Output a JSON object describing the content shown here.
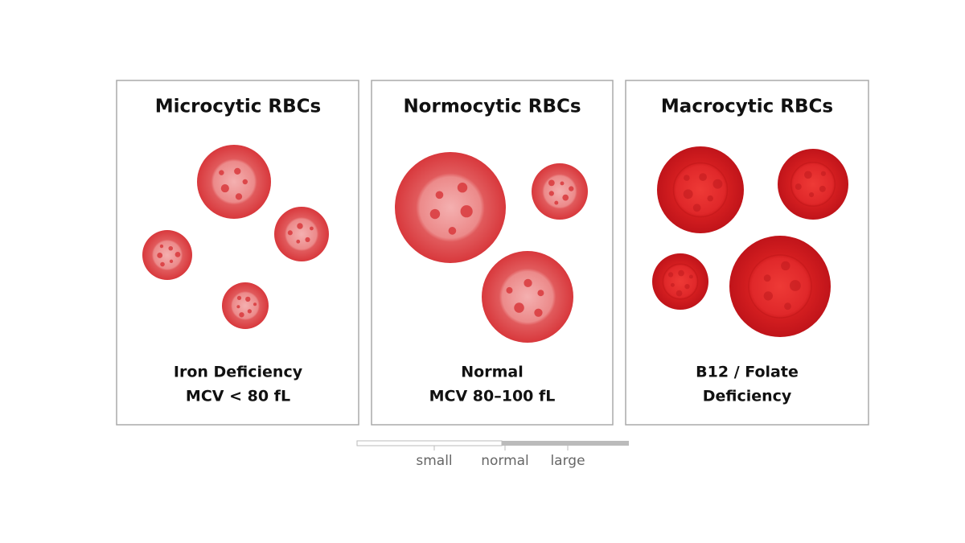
{
  "panels": [
    {
      "title": "Microcytic RBCs",
      "caption": [
        "Iron Deficiency",
        "MCV < 80 fL"
      ]
    },
    {
      "title": "Normocytic RBCs",
      "caption": [
        "Normal",
        "MCV 80–100 fL"
      ]
    },
    {
      "title": "Macrocytic RBCs",
      "caption": [
        "B12 / Folate",
        "Deficiency"
      ]
    }
  ],
  "scale": {
    "labels": [
      "small",
      "normal",
      "large"
    ]
  }
}
